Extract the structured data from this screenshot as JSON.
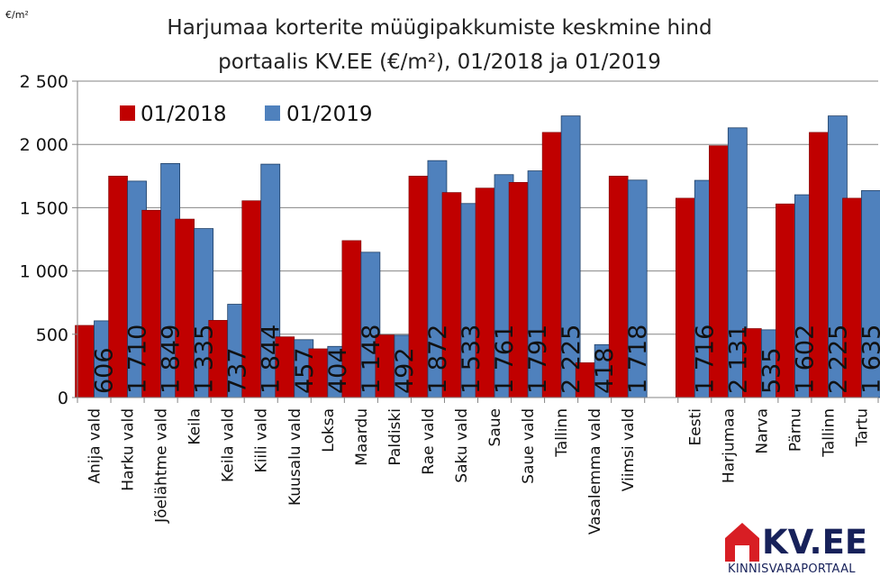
{
  "chart_data": {
    "type": "bar",
    "title_lines": [
      "Harjumaa korterite müügipakkumiste keskmine hind",
      "portaalis KV.EE (€/m²), 01/2018 ja 01/2019"
    ],
    "unit_label": "€/m²",
    "ylim": [
      0,
      2500
    ],
    "yticks": [
      {
        "value": 0,
        "label": "0"
      },
      {
        "value": 500,
        "label": "500"
      },
      {
        "value": 1000,
        "label": "1 000"
      },
      {
        "value": 1500,
        "label": "1 500"
      },
      {
        "value": 2000,
        "label": "2 000"
      },
      {
        "value": 2500,
        "label": "2 500"
      }
    ],
    "grid": "horizontal",
    "legend_position": "top-left",
    "categories": [
      "Anija vald",
      "Harku vald",
      "Jõelähtme vald",
      "Keila",
      "Keila vald",
      "Kiili vald",
      "Kuusalu vald",
      "Loksa",
      "Maardu",
      "Paldiski",
      "Rae vald",
      "Saku vald",
      "Saue",
      "Saue vald",
      "Tallinn",
      "Vasalemma vald",
      "Viimsi vald",
      "",
      "Eesti",
      "Harjumaa",
      "Narva",
      "Pärnu",
      "Tallinn",
      "Tartu"
    ],
    "series": [
      {
        "name": "01/2018",
        "color": "#c00000",
        "values": [
          570,
          1750,
          1480,
          1410,
          610,
          1555,
          480,
          385,
          1240,
          495,
          1750,
          1620,
          1655,
          1700,
          2095,
          275,
          1750,
          null,
          1575,
          1990,
          545,
          1530,
          2095,
          1575
        ]
      },
      {
        "name": "01/2019",
        "color": "#4f81bd",
        "values": [
          606,
          1710,
          1849,
          1335,
          737,
          1844,
          457,
          404,
          1148,
          492,
          1872,
          1533,
          1761,
          1791,
          2225,
          418,
          1718,
          null,
          1716,
          2131,
          535,
          1602,
          2225,
          1635
        ]
      }
    ],
    "data_labels": [
      "606",
      "1 710",
      "1 849",
      "1 335",
      "737",
      "1 844",
      "457",
      "404",
      "1 148",
      "492",
      "1 872",
      "1 533",
      "1 761",
      "1 791",
      "2 225",
      "418",
      "1 718",
      "",
      "1 716",
      "2 131",
      "535",
      "1 602",
      "2 225",
      "1 635"
    ]
  },
  "logo": {
    "main_text": "KV.EE",
    "sub_text": "KINNISVARAPORTAAL"
  }
}
